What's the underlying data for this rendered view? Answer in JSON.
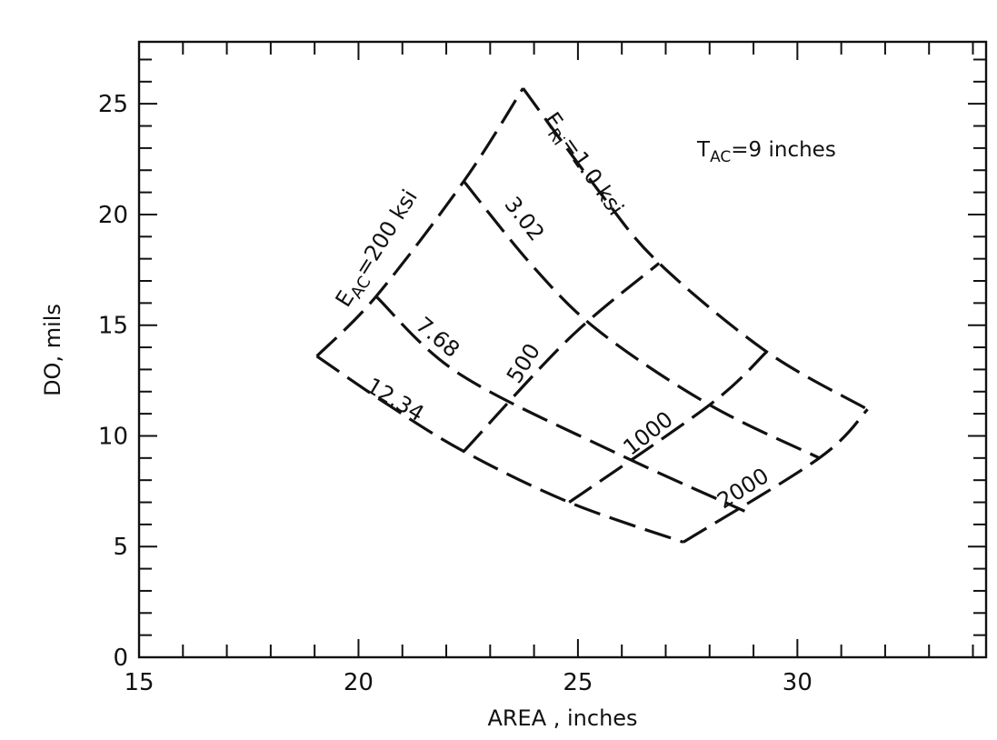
{
  "chart_data": {
    "type": "line",
    "xlabel": "AREA , inches",
    "ylabel": "DO, mils",
    "xlim": [
      15,
      34.3
    ],
    "ylim": [
      0,
      27.8
    ],
    "x_ticks": [
      15,
      20,
      25,
      30
    ],
    "y_ticks": [
      0,
      5,
      10,
      15,
      20,
      25
    ],
    "minor_step_x": 1,
    "minor_step_y": 1,
    "grid": false,
    "annotation": {
      "main": "T",
      "sub": "AC",
      "rest": "=9 inches"
    },
    "constant_E_AC_curves": [
      {
        "label_main": "E",
        "label_sub": "AC",
        "label_rest": "=200 ksi",
        "points": [
          [
            19.05,
            13.6
          ],
          [
            20.4,
            16.3
          ],
          [
            22.4,
            21.5
          ],
          [
            23.75,
            25.7
          ]
        ]
      },
      {
        "label": "500",
        "points": [
          [
            22.4,
            9.3
          ],
          [
            24.8,
            14.4
          ],
          [
            26.85,
            17.8
          ]
        ]
      },
      {
        "label": "1000",
        "points": [
          [
            24.8,
            7.0
          ],
          [
            28.0,
            11.4
          ],
          [
            29.3,
            13.8
          ]
        ]
      },
      {
        "label": "2000",
        "points": [
          [
            27.4,
            5.2
          ],
          [
            30.5,
            9.0
          ],
          [
            31.6,
            11.2
          ]
        ]
      }
    ],
    "constant_E_Ri_curves": [
      {
        "label_main": "E",
        "label_sub": "Ri",
        "label_rest": "=1.0 ksi",
        "points": [
          [
            23.75,
            25.7
          ],
          [
            25.5,
            21.0
          ],
          [
            26.85,
            17.8
          ],
          [
            29.3,
            13.8
          ],
          [
            31.6,
            11.2
          ]
        ]
      },
      {
        "label": "3.02",
        "points": [
          [
            22.4,
            21.5
          ],
          [
            24.0,
            17.6
          ],
          [
            25.5,
            14.7
          ],
          [
            28.0,
            11.4
          ],
          [
            30.5,
            9.0
          ]
        ]
      },
      {
        "label": "7.68",
        "points": [
          [
            20.4,
            16.3
          ],
          [
            22.3,
            12.8
          ],
          [
            25.9,
            9.2
          ],
          [
            28.8,
            6.6
          ]
        ]
      },
      {
        "label": "12.34",
        "points": [
          [
            19.05,
            13.6
          ],
          [
            20.6,
            11.5
          ],
          [
            22.4,
            9.3
          ],
          [
            24.8,
            7.0
          ],
          [
            27.4,
            5.2
          ]
        ]
      }
    ]
  }
}
